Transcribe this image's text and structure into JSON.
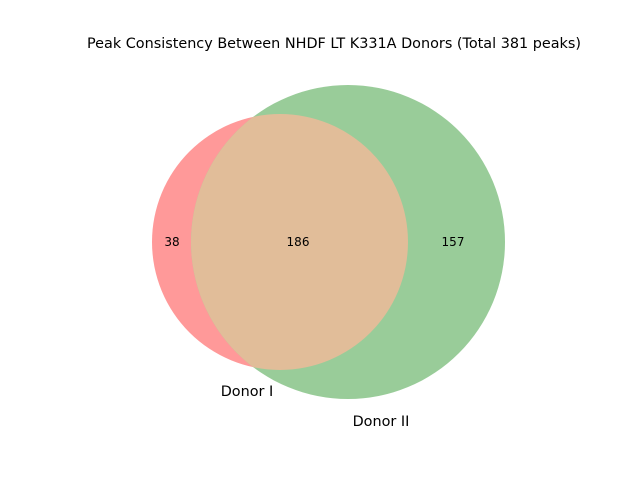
{
  "chart_data": {
    "type": "venn",
    "title": "Peak Consistency Between NHDF LT K331A Donors (Total 381 peaks)",
    "sets": [
      {
        "name": "Donor I",
        "size": 224,
        "color": "#ff9999"
      },
      {
        "name": "Donor II",
        "size": 343,
        "color": "#99cc99"
      }
    ],
    "regions": {
      "only_first": 38,
      "intersection": 186,
      "only_second": 157
    },
    "intersection_color": "#e1bd99",
    "total": 381
  }
}
